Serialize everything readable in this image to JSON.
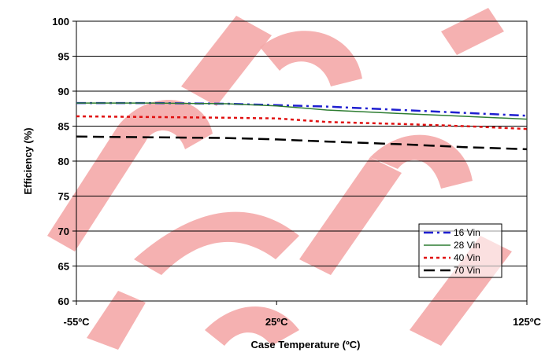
{
  "chart_data": {
    "type": "line",
    "title": "",
    "xlabel": "Case Temperature (ºC)",
    "ylabel": "Efficiency (%)",
    "x_tick_labels": [
      "-55ºC",
      "25ºC",
      "125ºC"
    ],
    "x_ticks": [
      -55,
      25,
      125
    ],
    "xlim": [
      -55,
      125
    ],
    "ylim": [
      60,
      100
    ],
    "y_ticks": [
      60,
      65,
      70,
      75,
      80,
      85,
      90,
      95,
      100
    ],
    "grid": true,
    "legend_position": "bottom-right",
    "series": [
      {
        "name": "16 Vin",
        "color": "#1f1fd0",
        "dash": "dashdot",
        "points": [
          [
            -55,
            88.3
          ],
          [
            -25,
            88.3
          ],
          [
            5,
            88.2
          ],
          [
            25,
            88.0
          ],
          [
            45,
            87.8
          ],
          [
            75,
            87.3
          ],
          [
            100,
            86.9
          ],
          [
            125,
            86.5
          ]
        ]
      },
      {
        "name": "28 Vin",
        "color": "#2e7d32",
        "dash": "solid",
        "points": [
          [
            -55,
            88.3
          ],
          [
            -25,
            88.3
          ],
          [
            5,
            88.2
          ],
          [
            25,
            87.9
          ],
          [
            45,
            87.3
          ],
          [
            75,
            86.8
          ],
          [
            100,
            86.4
          ],
          [
            125,
            86.0
          ]
        ]
      },
      {
        "name": "40 Vin",
        "color": "#e01010",
        "dash": "dotted",
        "points": [
          [
            -55,
            86.4
          ],
          [
            -25,
            86.3
          ],
          [
            5,
            86.2
          ],
          [
            25,
            86.1
          ],
          [
            45,
            85.6
          ],
          [
            75,
            85.3
          ],
          [
            100,
            85.0
          ],
          [
            125,
            84.6
          ]
        ]
      },
      {
        "name": "70 Vin",
        "color": "#000000",
        "dash": "dashed",
        "points": [
          [
            -55,
            83.5
          ],
          [
            -25,
            83.4
          ],
          [
            5,
            83.3
          ],
          [
            25,
            83.1
          ],
          [
            45,
            82.8
          ],
          [
            75,
            82.4
          ],
          [
            100,
            82.0
          ],
          [
            125,
            81.7
          ]
        ]
      }
    ]
  },
  "watermark": {
    "color": "#f4a8a8"
  }
}
